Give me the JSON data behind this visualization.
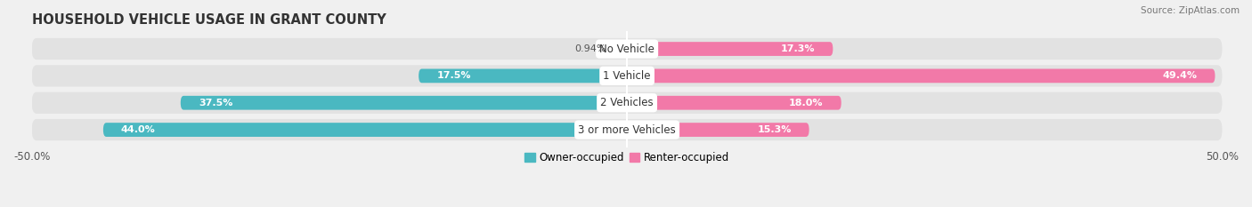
{
  "title": "HOUSEHOLD VEHICLE USAGE IN GRANT COUNTY",
  "source": "Source: ZipAtlas.com",
  "categories": [
    "No Vehicle",
    "1 Vehicle",
    "2 Vehicles",
    "3 or more Vehicles"
  ],
  "owner_values": [
    0.94,
    17.5,
    37.5,
    44.0
  ],
  "renter_values": [
    17.3,
    49.4,
    18.0,
    15.3
  ],
  "owner_color": "#4ab8c1",
  "renter_color": "#f279a8",
  "background_color": "#f0f0f0",
  "bar_bg_color": "#e2e2e2",
  "title_fontsize": 10.5,
  "source_fontsize": 7.5,
  "tick_fontsize": 8.5,
  "legend_fontsize": 8.5,
  "bar_height": 0.52,
  "xlim": [
    -50,
    50
  ],
  "owner_inside_threshold": 4.0,
  "renter_inside_threshold": 4.0
}
